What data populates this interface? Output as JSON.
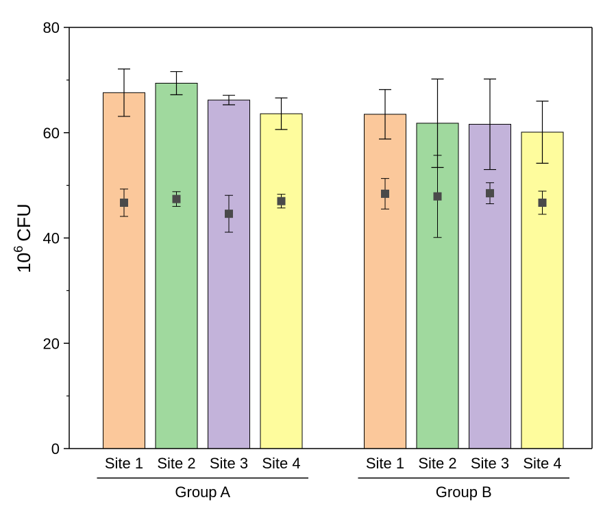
{
  "chart_data": {
    "type": "bar",
    "ylabel": "CFU",
    "ylabel_prefix": "10",
    "ylabel_exponent": "6",
    "ylim": [
      0,
      80
    ],
    "yticks": [
      "0",
      "20",
      "40",
      "60",
      "80"
    ],
    "groups": [
      {
        "label": "Group A",
        "items": [
          {
            "category": "Site 1",
            "value": 67.6,
            "err": 4.5,
            "marker": 46.7,
            "marker_err": 2.6,
            "color": "#FBC89B"
          },
          {
            "category": "Site 2",
            "value": 69.4,
            "err": 2.2,
            "marker": 47.4,
            "marker_err": 1.4,
            "color": "#A0D99E"
          },
          {
            "category": "Site 3",
            "value": 66.2,
            "err": 0.9,
            "marker": 44.6,
            "marker_err": 3.5,
            "color": "#C3B3DA"
          },
          {
            "category": "Site 4",
            "value": 63.6,
            "err": 3.0,
            "marker": 47.0,
            "marker_err": 1.3,
            "color": "#FEFC9D"
          }
        ]
      },
      {
        "label": "Group B",
        "items": [
          {
            "category": "Site 1",
            "value": 63.5,
            "err": 4.7,
            "marker": 48.4,
            "marker_err": 2.9,
            "color": "#FBC89B"
          },
          {
            "category": "Site 2",
            "value": 61.8,
            "err": 8.4,
            "marker": 47.9,
            "marker_err": 7.8,
            "color": "#A0D99E"
          },
          {
            "category": "Site 3",
            "value": 61.6,
            "err": 8.6,
            "marker": 48.5,
            "marker_err": 2.0,
            "color": "#C3B3DA"
          },
          {
            "category": "Site 4",
            "value": 60.1,
            "err": 5.9,
            "marker": 46.7,
            "marker_err": 2.2,
            "color": "#FEFC9D"
          }
        ]
      }
    ],
    "marker_color": "#4A4A4A",
    "marker_shape": "square",
    "grid": false,
    "legend": "none"
  }
}
